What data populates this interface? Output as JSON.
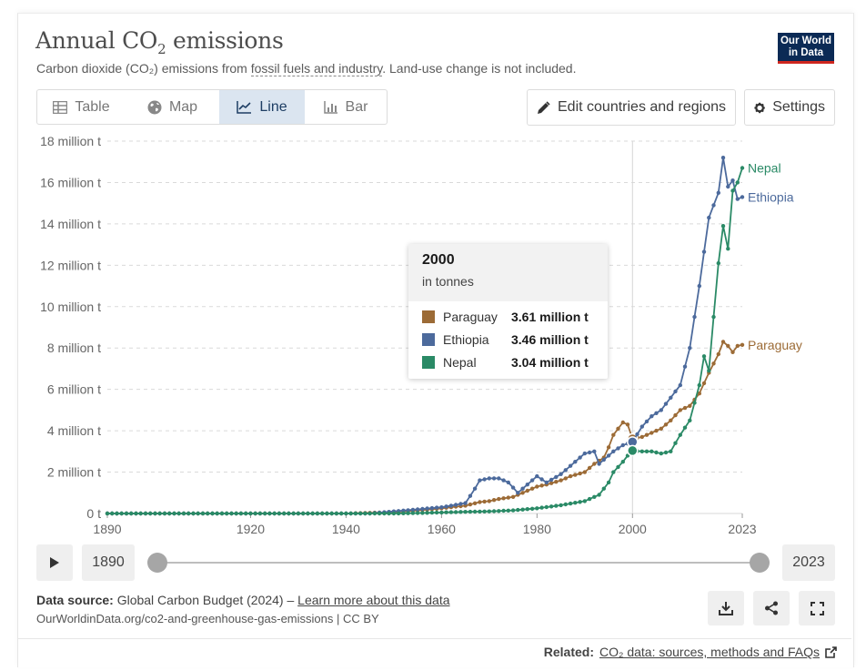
{
  "header": {
    "title_main": "Annual CO",
    "title_sub": "2",
    "title_rest": " emissions",
    "subtitle_pre": "Carbon dioxide (CO₂) emissions from ",
    "subtitle_link": "fossil fuels and industry",
    "subtitle_post": ". Land-use change is not included.",
    "logo_line1": "Our World",
    "logo_line2": "in Data"
  },
  "tabs": [
    {
      "label": "Table",
      "icon": "table-icon"
    },
    {
      "label": "Map",
      "icon": "globe-icon"
    },
    {
      "label": "Line",
      "icon": "line-chart-icon",
      "active": true
    },
    {
      "label": "Bar",
      "icon": "bar-chart-icon"
    }
  ],
  "toolbar": {
    "edit_label": "Edit countries and regions",
    "settings_label": "Settings"
  },
  "tooltip": {
    "year": "2000",
    "unit": "in tonnes",
    "rows": [
      {
        "name": "Paraguay",
        "value": "3.61 million t"
      },
      {
        "name": "Ethiopia",
        "value": "3.46 million t"
      },
      {
        "name": "Nepal",
        "value": "3.04 million t"
      }
    ]
  },
  "timeline": {
    "start_label": "1890",
    "end_label": "2023"
  },
  "footer": {
    "source_label": "Data source:",
    "source_text": " Global Carbon Budget (2024) – ",
    "learn_more": "Learn more about this data",
    "url_line": "OurWorldinData.org/co2-and-greenhouse-gas-emissions | CC BY",
    "related_label": "Related:",
    "related_link": "CO₂ data: sources, methods and FAQs"
  },
  "colors": {
    "paraguay": "#9c6b36",
    "ethiopia": "#4c6a9c",
    "nepal": "#2a8a66"
  },
  "chart_data": {
    "type": "line",
    "title": "Annual CO₂ emissions",
    "subtitle": "Carbon dioxide (CO₂) emissions from fossil fuels and industry. Land-use change is not included.",
    "xlabel": "",
    "ylabel": "",
    "unit": "tonnes",
    "xlim": [
      1890,
      2023
    ],
    "ylim": [
      0,
      18000000
    ],
    "x_ticks": [
      1890,
      1920,
      1940,
      1960,
      1980,
      2000,
      2023
    ],
    "y_ticks": [
      0,
      2000000,
      4000000,
      6000000,
      8000000,
      10000000,
      12000000,
      14000000,
      16000000,
      18000000
    ],
    "y_tick_labels": [
      "0 t",
      "2 million t",
      "4 million t",
      "6 million t",
      "8 million t",
      "10 million t",
      "12 million t",
      "14 million t",
      "16 million t",
      "18 million t"
    ],
    "grid": "horizontal dashed",
    "legend": "line-end labels",
    "highlight_year": 2000,
    "series": [
      {
        "name": "Paraguay",
        "color": "#9c6b36",
        "points": [
          [
            1890,
            0
          ],
          [
            1940,
            0
          ],
          [
            1948,
            50000
          ],
          [
            1950,
            70000
          ],
          [
            1955,
            150000
          ],
          [
            1960,
            250000
          ],
          [
            1965,
            380000
          ],
          [
            1968,
            550000
          ],
          [
            1970,
            600000
          ],
          [
            1972,
            700000
          ],
          [
            1975,
            800000
          ],
          [
            1978,
            1100000
          ],
          [
            1980,
            1300000
          ],
          [
            1982,
            1400000
          ],
          [
            1985,
            1600000
          ],
          [
            1987,
            1800000
          ],
          [
            1990,
            2000000
          ],
          [
            1992,
            2400000
          ],
          [
            1994,
            2700000
          ],
          [
            1995,
            3200000
          ],
          [
            1996,
            3800000
          ],
          [
            1997,
            4100000
          ],
          [
            1998,
            4400000
          ],
          [
            1999,
            4300000
          ],
          [
            2000,
            3610000
          ],
          [
            2002,
            3700000
          ],
          [
            2004,
            3900000
          ],
          [
            2006,
            4100000
          ],
          [
            2008,
            4500000
          ],
          [
            2010,
            5000000
          ],
          [
            2012,
            5200000
          ],
          [
            2014,
            5800000
          ],
          [
            2016,
            6800000
          ],
          [
            2018,
            7700000
          ],
          [
            2019,
            8300000
          ],
          [
            2020,
            8100000
          ],
          [
            2021,
            7800000
          ],
          [
            2022,
            8100000
          ],
          [
            2023,
            8150000
          ]
        ]
      },
      {
        "name": "Ethiopia",
        "color": "#4c6a9c",
        "points": [
          [
            1890,
            0
          ],
          [
            1945,
            0
          ],
          [
            1950,
            100000
          ],
          [
            1955,
            200000
          ],
          [
            1960,
            300000
          ],
          [
            1965,
            500000
          ],
          [
            1967,
            1200000
          ],
          [
            1968,
            1600000
          ],
          [
            1970,
            1700000
          ],
          [
            1972,
            1700000
          ],
          [
            1974,
            1500000
          ],
          [
            1976,
            1000000
          ],
          [
            1978,
            1400000
          ],
          [
            1980,
            1800000
          ],
          [
            1982,
            1500000
          ],
          [
            1985,
            1900000
          ],
          [
            1988,
            2500000
          ],
          [
            1990,
            2900000
          ],
          [
            1992,
            3000000
          ],
          [
            1993,
            2400000
          ],
          [
            1994,
            2600000
          ],
          [
            1996,
            3000000
          ],
          [
            1998,
            3300000
          ],
          [
            2000,
            3460000
          ],
          [
            2002,
            4200000
          ],
          [
            2004,
            4700000
          ],
          [
            2006,
            5000000
          ],
          [
            2008,
            5600000
          ],
          [
            2010,
            6200000
          ],
          [
            2012,
            8000000
          ],
          [
            2014,
            11000000
          ],
          [
            2016,
            14300000
          ],
          [
            2018,
            15500000
          ],
          [
            2019,
            17200000
          ],
          [
            2020,
            15800000
          ],
          [
            2021,
            16100000
          ],
          [
            2022,
            15200000
          ],
          [
            2023,
            15300000
          ]
        ]
      },
      {
        "name": "Nepal",
        "color": "#2a8a66",
        "points": [
          [
            1890,
            0
          ],
          [
            1950,
            0
          ],
          [
            1955,
            20000
          ],
          [
            1960,
            50000
          ],
          [
            1965,
            80000
          ],
          [
            1970,
            100000
          ],
          [
            1975,
            150000
          ],
          [
            1980,
            250000
          ],
          [
            1985,
            400000
          ],
          [
            1990,
            600000
          ],
          [
            1993,
            900000
          ],
          [
            1995,
            1500000
          ],
          [
            1996,
            2000000
          ],
          [
            1998,
            2500000
          ],
          [
            1999,
            2800000
          ],
          [
            2000,
            3040000
          ],
          [
            2002,
            3000000
          ],
          [
            2004,
            3000000
          ],
          [
            2006,
            2900000
          ],
          [
            2008,
            3000000
          ],
          [
            2010,
            3800000
          ],
          [
            2012,
            4500000
          ],
          [
            2014,
            6200000
          ],
          [
            2015,
            7600000
          ],
          [
            2016,
            6900000
          ],
          [
            2018,
            12100000
          ],
          [
            2019,
            13900000
          ],
          [
            2020,
            12800000
          ],
          [
            2021,
            15600000
          ],
          [
            2022,
            16000000
          ],
          [
            2023,
            16700000
          ]
        ]
      }
    ]
  }
}
